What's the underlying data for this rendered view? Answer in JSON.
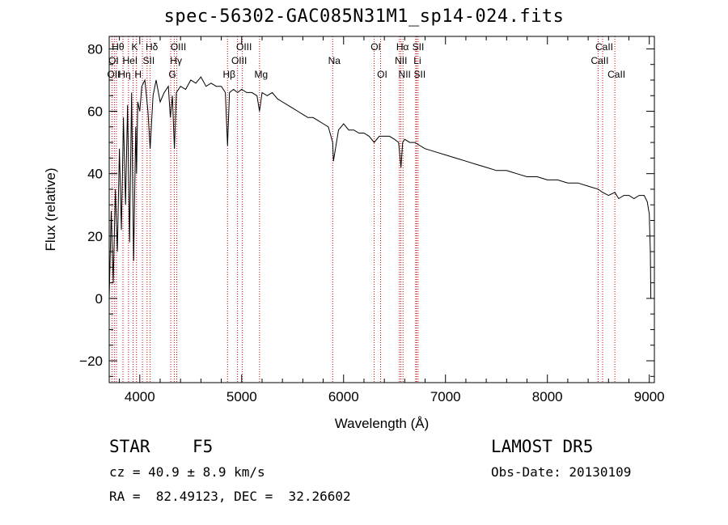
{
  "chart_data": {
    "type": "line",
    "title": "spec-56302-GAC085N31M1_sp14-024.fits",
    "xlabel": "Wavelength (Å)",
    "ylabel": "Flux (relative)",
    "xlim": [
      3700,
      9050
    ],
    "ylim": [
      -27,
      84
    ],
    "xticks": [
      4000,
      5000,
      6000,
      7000,
      8000,
      9000
    ],
    "yticks": [
      -20,
      0,
      20,
      40,
      60,
      80
    ],
    "series": [
      {
        "color": "#000000",
        "x": [
          3700,
          3720,
          3740,
          3760,
          3780,
          3800,
          3820,
          3840,
          3860,
          3880,
          3900,
          3920,
          3940,
          3960,
          3968,
          3980,
          4000,
          4020,
          4050,
          4080,
          4102,
          4130,
          4160,
          4200,
          4240,
          4280,
          4300,
          4320,
          4340,
          4360,
          4400,
          4450,
          4500,
          4550,
          4600,
          4650,
          4700,
          4750,
          4800,
          4840,
          4861,
          4880,
          4920,
          4960,
          5000,
          5050,
          5100,
          5150,
          5175,
          5200,
          5250,
          5300,
          5350,
          5400,
          5450,
          5500,
          5550,
          5600,
          5650,
          5700,
          5750,
          5800,
          5850,
          5893,
          5900,
          5950,
          6000,
          6050,
          6100,
          6150,
          6200,
          6250,
          6300,
          6350,
          6400,
          6450,
          6500,
          6540,
          6563,
          6580,
          6600,
          6650,
          6700,
          6750,
          6800,
          6900,
          7000,
          7100,
          7200,
          7300,
          7400,
          7500,
          7600,
          7700,
          7800,
          7900,
          8000,
          8100,
          8200,
          8300,
          8400,
          8498,
          8542,
          8600,
          8662,
          8700,
          8750,
          8800,
          8850,
          8900,
          8950,
          8980,
          9000,
          9010,
          9015
        ],
        "y": [
          0,
          28,
          5,
          35,
          15,
          48,
          22,
          58,
          30,
          62,
          18,
          66,
          12,
          55,
          40,
          63,
          60,
          68,
          70,
          60,
          48,
          65,
          70,
          63,
          66,
          68,
          58,
          65,
          48,
          66,
          68,
          67,
          70,
          69,
          71,
          68,
          69,
          68,
          68,
          66,
          49,
          66,
          67,
          66,
          67,
          66,
          66,
          65,
          60,
          66,
          65,
          66,
          64,
          63,
          62,
          61,
          60,
          59,
          58,
          58,
          57,
          56,
          55,
          50,
          44,
          54,
          56,
          54,
          54,
          53,
          53,
          52,
          50,
          52,
          52,
          52,
          51,
          50,
          42,
          50,
          51,
          50,
          50,
          49,
          48,
          47,
          46,
          45,
          44,
          43,
          42,
          41,
          41,
          40,
          39,
          39,
          38,
          38,
          37,
          37,
          36,
          35,
          34,
          33,
          34,
          32,
          33,
          33,
          32,
          33,
          33,
          31,
          27,
          15,
          0
        ]
      }
    ],
    "lines": [
      {
        "x": 3727,
        "color": "#c80000"
      },
      {
        "x": 3750,
        "color": "#c80000"
      },
      {
        "x": 3771,
        "color": "#c80000"
      },
      {
        "x": 3835,
        "color": "#c80000"
      },
      {
        "x": 3889,
        "color": "#c80000"
      },
      {
        "x": 3934,
        "color": "#c80000"
      },
      {
        "x": 3968,
        "color": "#c80000"
      },
      {
        "x": 4026,
        "color": "#c80000"
      },
      {
        "x": 4072,
        "color": "#c80000"
      },
      {
        "x": 4102,
        "color": "#c80000"
      },
      {
        "x": 4304,
        "color": "#c80000"
      },
      {
        "x": 4340,
        "color": "#c80000"
      },
      {
        "x": 4363,
        "color": "#c80000"
      },
      {
        "x": 4861,
        "color": "#c80000"
      },
      {
        "x": 4959,
        "color": "#c80000"
      },
      {
        "x": 5007,
        "color": "#c80000"
      },
      {
        "x": 5175,
        "color": "#c80000"
      },
      {
        "x": 5893,
        "color": "#c80000"
      },
      {
        "x": 6300,
        "color": "#c80000"
      },
      {
        "x": 6363,
        "color": "#c80000"
      },
      {
        "x": 6548,
        "color": "#c80000"
      },
      {
        "x": 6563,
        "color": "#c80000"
      },
      {
        "x": 6583,
        "color": "#c80000"
      },
      {
        "x": 6708,
        "color": "#c80000"
      },
      {
        "x": 6716,
        "color": "#c80000"
      },
      {
        "x": 6731,
        "color": "#c80000"
      },
      {
        "x": 8498,
        "color": "#c80000"
      },
      {
        "x": 8542,
        "color": "#c80000"
      },
      {
        "x": 8662,
        "color": "#c80000"
      }
    ],
    "annotations": [
      {
        "text": "Hθ",
        "x": 3771,
        "row": 1
      },
      {
        "text": "K",
        "x": 3934,
        "row": 1
      },
      {
        "text": "Hδ",
        "x": 4102,
        "row": 1
      },
      {
        "text": "OIII",
        "x": 4363,
        "row": 1
      },
      {
        "text": "OIII",
        "x": 5007,
        "row": 1
      },
      {
        "text": "OI",
        "x": 6300,
        "row": 1
      },
      {
        "text": "Hα",
        "x": 6563,
        "row": 1
      },
      {
        "text": "SII",
        "x": 6716,
        "row": 1
      },
      {
        "text": "CaII",
        "x": 8542,
        "row": 1
      },
      {
        "text": "OI",
        "x": 3727,
        "row": 2
      },
      {
        "text": "HeI",
        "x": 3889,
        "row": 2
      },
      {
        "text": "SII",
        "x": 4072,
        "row": 2
      },
      {
        "text": "Hγ",
        "x": 4340,
        "row": 2
      },
      {
        "text": "OIII",
        "x": 4959,
        "row": 2
      },
      {
        "text": "Na",
        "x": 5893,
        "row": 2
      },
      {
        "text": "NII",
        "x": 6548,
        "row": 2
      },
      {
        "text": "Li",
        "x": 6708,
        "row": 2
      },
      {
        "text": "CaII",
        "x": 8498,
        "row": 2
      },
      {
        "text": "OII",
        "x": 3727,
        "row": 3
      },
      {
        "text": "Hη",
        "x": 3835,
        "row": 3
      },
      {
        "text": "H",
        "x": 3968,
        "row": 3
      },
      {
        "text": "G",
        "x": 4304,
        "row": 3
      },
      {
        "text": "Hβ",
        "x": 4861,
        "row": 3
      },
      {
        "text": "Mg",
        "x": 5175,
        "row": 3
      },
      {
        "text": "OI",
        "x": 6363,
        "row": 3
      },
      {
        "text": "NII",
        "x": 6583,
        "row": 3
      },
      {
        "text": "SII",
        "x": 6731,
        "row": 3
      },
      {
        "text": "CaII",
        "x": 8662,
        "row": 3
      }
    ]
  },
  "info": {
    "class": "STAR",
    "subclass": "F5",
    "survey": "LAMOST DR5",
    "cz": "cz = 40.9 ± 8.9 km/s",
    "obs_date": "Obs-Date: 20130109",
    "coords": "RA =  82.49123, DEC =  32.26602"
  }
}
